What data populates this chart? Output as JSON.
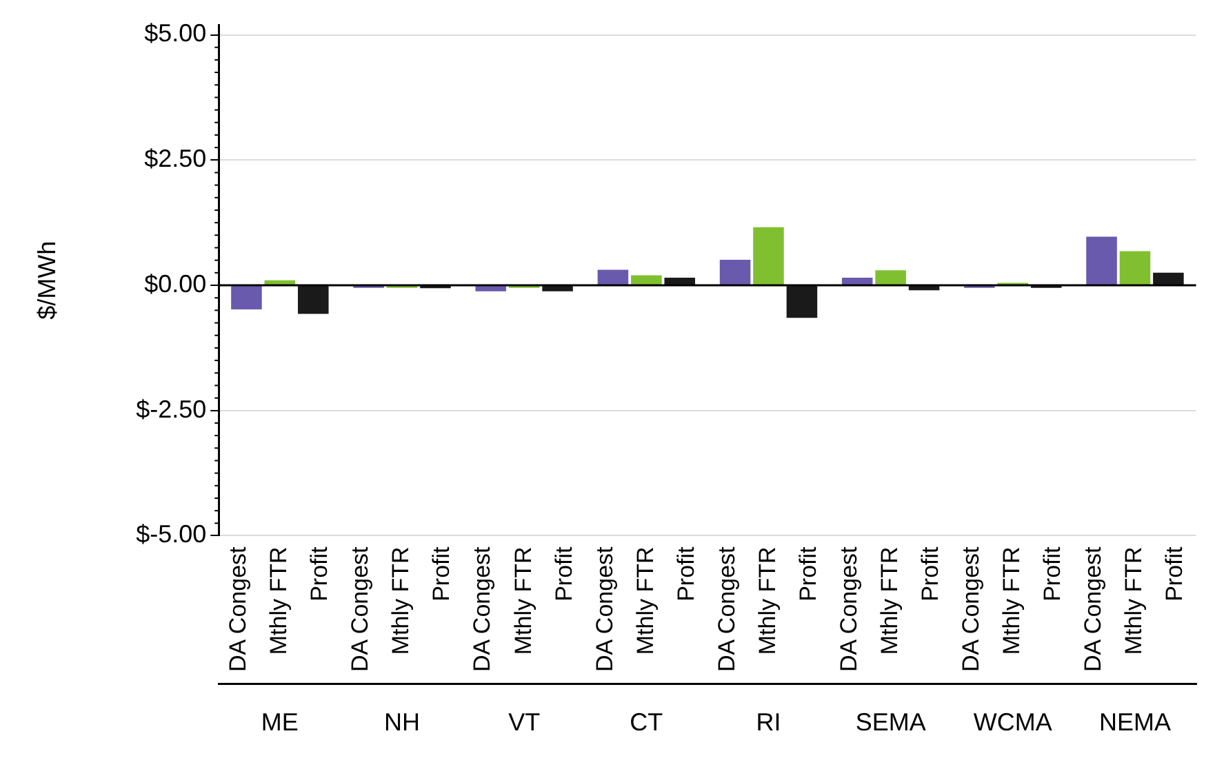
{
  "chart_data": {
    "type": "bar",
    "ylabel": "$/MWh",
    "categories": [
      "ME",
      "NH",
      "VT",
      "CT",
      "RI",
      "SEMA",
      "WCMA",
      "NEMA"
    ],
    "series": [
      {
        "name": "DA Congest",
        "color": "#6a5aad",
        "values": [
          -0.48,
          -0.05,
          -0.12,
          0.31,
          0.51,
          0.15,
          -0.05,
          0.97
        ]
      },
      {
        "name": "Mthly FTR",
        "color": "#80c030",
        "values": [
          0.1,
          -0.05,
          -0.05,
          0.2,
          1.16,
          0.3,
          0.05,
          0.68
        ]
      },
      {
        "name": "Profit",
        "color": "#1a1a1a",
        "values": [
          -0.57,
          -0.06,
          -0.12,
          0.15,
          -0.65,
          -0.1,
          -0.05,
          0.25
        ]
      }
    ],
    "ylim": [
      -5,
      5.2
    ],
    "yticks": [
      {
        "value": -5,
        "label": "$-5.00"
      },
      {
        "value": -2.5,
        "label": "$-2.50"
      },
      {
        "value": 0,
        "label": "$0.00"
      },
      {
        "value": 2.5,
        "label": "$2.50"
      },
      {
        "value": 5,
        "label": "$5.00"
      }
    ],
    "ref_lines": [
      {
        "axis": "y",
        "value": 0,
        "color": "#000000"
      }
    ],
    "grid": "y",
    "legend": false
  }
}
